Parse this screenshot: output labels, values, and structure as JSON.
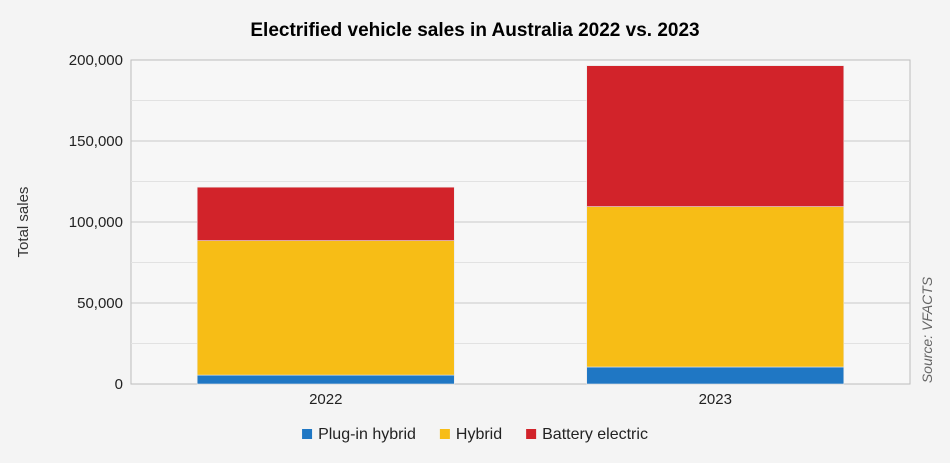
{
  "chart_data": {
    "type": "bar",
    "stacked": true,
    "title": "Electrified vehicle sales in Australia 2022 vs. 2023",
    "ylabel": "Total sales",
    "source": "Source: VFACTS",
    "categories": [
      "2022",
      "2023"
    ],
    "ylim": [
      0,
      200000
    ],
    "yticks": [
      0,
      50000,
      100000,
      150000,
      200000
    ],
    "ytick_labels": [
      "0",
      "50,000",
      "100,000",
      "150,000",
      "200,000"
    ],
    "grid": true,
    "legend_position": "bottom",
    "series": [
      {
        "name": "Plug-in hybrid",
        "color": "#1f77c4",
        "values": [
          5500,
          10500
        ]
      },
      {
        "name": "Hybrid",
        "color": "#f7bd16",
        "values": [
          83000,
          99000
        ]
      },
      {
        "name": "Battery electric",
        "color": "#d2232a",
        "values": [
          33000,
          87000
        ]
      }
    ]
  }
}
